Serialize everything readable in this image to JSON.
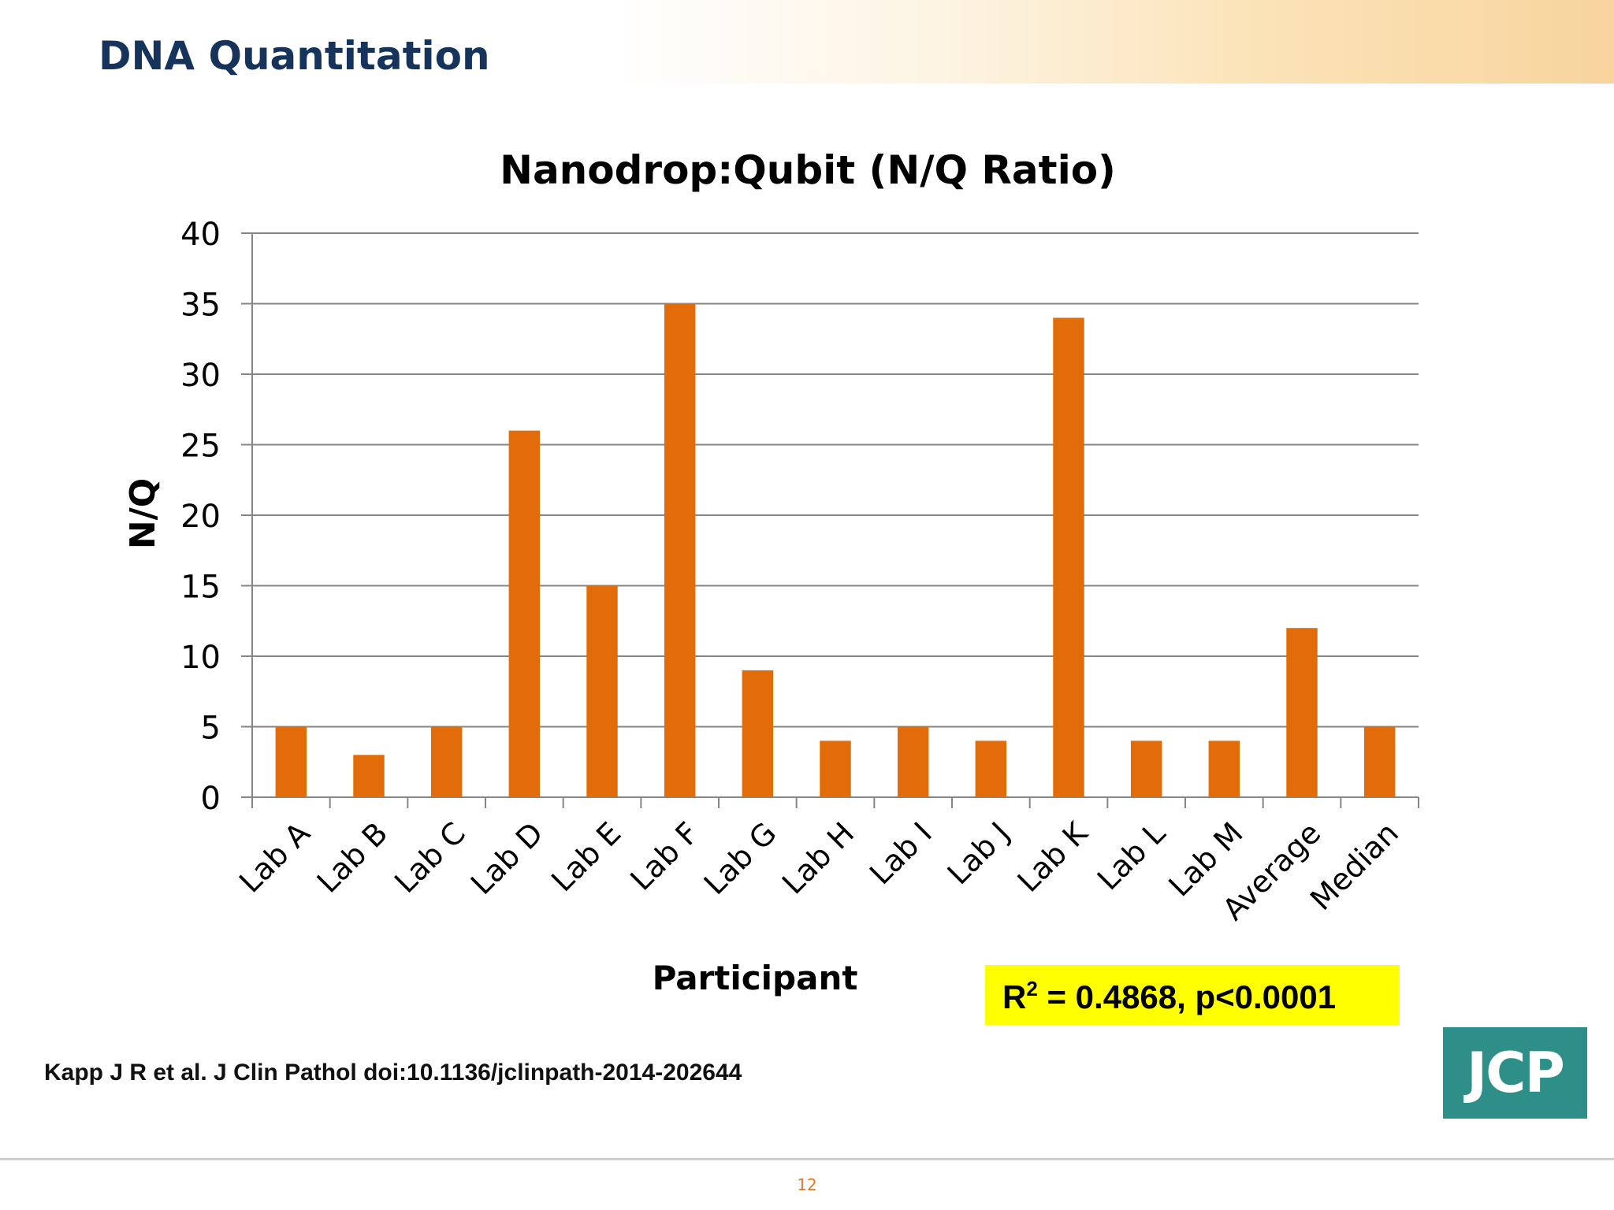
{
  "slide": {
    "title": "DNA Quantitation",
    "citation": "Kapp J R et al. J Clin Pathol doi:10.1136/jclinpath-2014-202644",
    "logo_text": "JCP",
    "page_number": "12",
    "colors": {
      "title": "#16335b",
      "bar": "#e36c0a",
      "annotation_bg": "#ffff00",
      "logo_bg": "#2e8f88",
      "page_number": "#e07b2a"
    }
  },
  "chart_data": {
    "type": "bar",
    "title": "Nanodrop:Qubit (N/Q Ratio)",
    "xlabel": "Participant",
    "ylabel": "N/Q",
    "ylim": [
      0,
      40
    ],
    "yticks": [
      "0",
      "5",
      "10",
      "15",
      "20",
      "25",
      "30",
      "35",
      "40"
    ],
    "grid": true,
    "categories": [
      "Lab A",
      "Lab B",
      "Lab C",
      "Lab D",
      "Lab E",
      "Lab F",
      "Lab G",
      "Lab H",
      "Lab I",
      "Lab J",
      "Lab K",
      "Lab L",
      "Lab M",
      "Average",
      "Median"
    ],
    "values": [
      5,
      3,
      5,
      26,
      15,
      35,
      9,
      4,
      5,
      4,
      34,
      4,
      4,
      12,
      5
    ],
    "annotation": {
      "prefix": "R",
      "sup": "2",
      "rest": " = 0.4868, p<0.0001"
    }
  }
}
